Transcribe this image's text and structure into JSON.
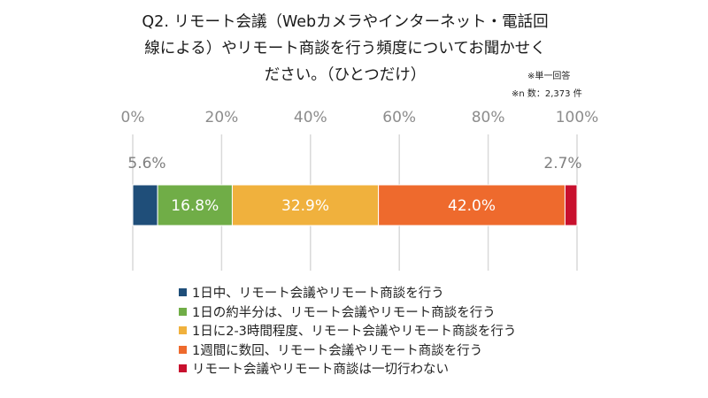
{
  "title_lines": [
    "Q2. リモート会議（Webカメラやインターネット・電話回",
    "線による）やリモート商談を行う頻度についてお聞かせく",
    "ださい。（ひとつだけ）"
  ],
  "notes": {
    "single_answer": "※単一回答",
    "sample_size": "※n 数：2,373 件"
  },
  "chart_data": {
    "type": "bar",
    "orientation": "horizontal",
    "stacked": true,
    "percent_scale": true,
    "xlim": [
      0,
      100
    ],
    "ticks": [
      "0%",
      "20%",
      "40%",
      "60%",
      "80%",
      "100%"
    ],
    "tick_values": [
      0,
      20,
      40,
      60,
      80,
      100
    ],
    "grid": true,
    "legend_position": "bottom",
    "series": [
      {
        "name": "1日中、リモート会議やリモート商談を行う",
        "value": 5.6,
        "label": "5.6%",
        "color": "#1f4e79",
        "label_position": "above"
      },
      {
        "name": "1日の約半分は、リモート会議やリモート商談を行う",
        "value": 16.8,
        "label": "16.8%",
        "color": "#70ad47",
        "label_position": "inside"
      },
      {
        "name": "1日に2-3時間程度、リモート会議やリモート商談を行う",
        "value": 32.9,
        "label": "32.9%",
        "color": "#f0b13d",
        "label_position": "inside"
      },
      {
        "name": "1週間に数回、リモート会議やリモート商談を行う",
        "value": 42.0,
        "label": "42.0%",
        "color": "#ee6a2d",
        "label_position": "inside"
      },
      {
        "name": "リモート会議やリモート商談は一切行わない",
        "value": 2.7,
        "label": "2.7%",
        "color": "#c8102e",
        "label_position": "above"
      }
    ]
  }
}
